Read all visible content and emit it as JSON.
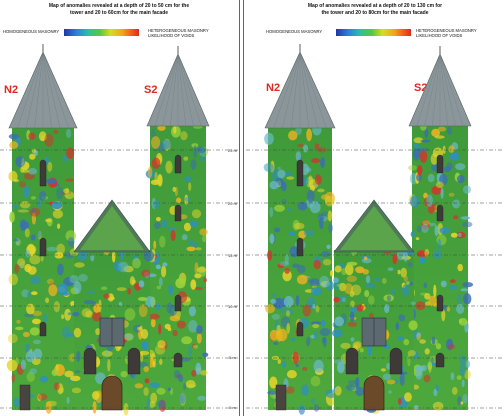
{
  "left_panel": {
    "title_line1": "Map of anomalies revealed at a depth of 20 to 50 cm for the",
    "title_line2": "tower and 20 to 60cm for the main facade",
    "legend_low": "HOMOGENEOUS MASONRY",
    "legend_high_line1": "HETEROGENEOUS MASONRY",
    "legend_high_line2": "LIKELIHOOD OF VOIDS",
    "tower_left": "N2",
    "tower_right": "S2"
  },
  "right_panel": {
    "title_line1": "Map of anomalies revealed at a depth of 20 to 130 cm for",
    "title_line2": "the tower and 20 to 80cm for the main facade",
    "legend_low": "HOMOGENEOUS MASONRY",
    "legend_high_line1": "HETEROGENEOUS MASONRY",
    "legend_high_line2": "LIKELIHOOD OF VOIDS",
    "tower_left": "N2",
    "tower_right": "S2"
  },
  "height_scale": [
    "25 m",
    "20 m",
    "15 m",
    "10 m",
    "5 m",
    "0 m"
  ],
  "colors": {
    "divider": "#2f6fb8",
    "tower_label": "#e0281c",
    "roof": "#8a969a",
    "anomaly_low": "#1a3aa0",
    "anomaly_high": "#e02a16"
  }
}
